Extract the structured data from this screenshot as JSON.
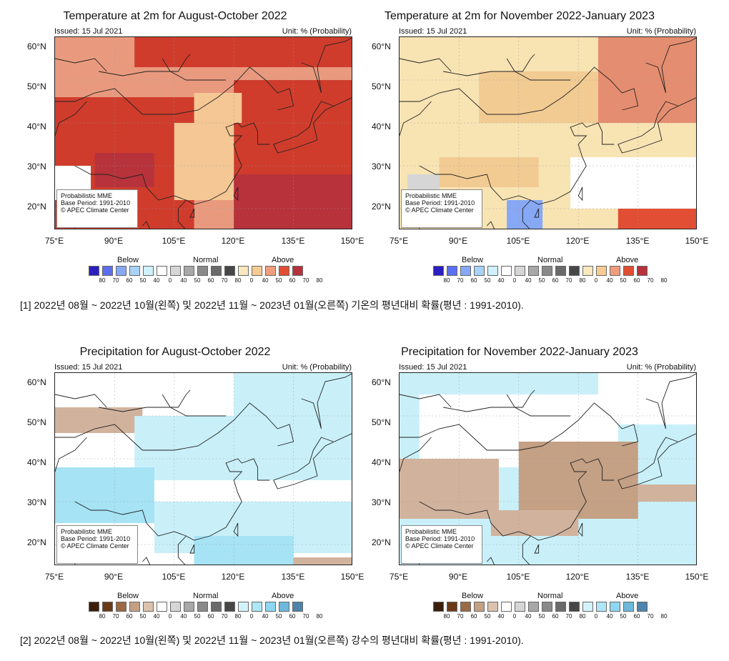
{
  "panels": [
    {
      "title": "Temperature at 2m for August-October 2022",
      "issued": "Issued: 15 Jul 2021",
      "unit": "Unit: % (Probability)",
      "info": [
        "Probabilistic MME",
        "Base Period: 1991-2010",
        "© APEC Climate Center"
      ],
      "fill_color": "#cf3c2c",
      "fill_color_2": "#e99a7e",
      "fill_color_3": "#f4c794",
      "dominant_category": "Above"
    },
    {
      "title": "Temperature at 2m for November 2022-January 2023",
      "issued": "Issued: 15 Jul 2021",
      "unit": "Unit: % (Probability)",
      "info": [
        "Probabilistic MME",
        "Base Period: 1991-2010",
        "© APEC Climate Center"
      ],
      "fill_color": "#f8e3b3",
      "fill_color_2": "#f2cb92",
      "fill_color_3": "#e58d70",
      "dominant_category": "Above"
    },
    {
      "title": "Precipitation for August-October 2022",
      "issued": "Issued: 15 Jul 2021",
      "unit": "Unit: % (Probability)",
      "info": [
        "Probabilistic MME",
        "Base Period: 1991-2010",
        "© APEC Climate Center"
      ],
      "fill_color": "#c9f0f9",
      "fill_color_2": "#a5e3f5",
      "fill_color_3": "#d1b39d",
      "dominant_category": "Normal"
    },
    {
      "title": "Precipitation for November 2022-January 2023",
      "issued": "Issued: 15 Jul 2021",
      "unit": "Unit: % (Probability)",
      "info": [
        "Probabilistic MME",
        "Base Period: 1991-2010",
        "© APEC Climate Center"
      ],
      "fill_color": "#c9f0f9",
      "fill_color_2": "#c4a084",
      "fill_color_3": "#d1b39d",
      "dominant_category": "Below"
    }
  ],
  "axes": {
    "lat_labels": [
      "60°N",
      "50°N",
      "40°N",
      "30°N",
      "20°N"
    ],
    "lon_labels": [
      "75°E",
      "90°E",
      "105°E",
      "120°E",
      "135°E",
      "150°E"
    ]
  },
  "legend": {
    "headings": [
      "Below",
      "Normal",
      "Above"
    ],
    "numbers": [
      "80",
      "70",
      "60",
      "50",
      "40",
      "0",
      "40",
      "50",
      "60",
      "70",
      "80",
      "0",
      "40",
      "50",
      "60",
      "70",
      "80"
    ],
    "temp_colors": {
      "below": [
        "#2b1fbf",
        "#5b6ff0",
        "#86a8f5",
        "#a8d2f7",
        "#cff2fc",
        "#ffffff"
      ],
      "normal": [
        "#ffffff",
        "#d6d6d6",
        "#a8a8a8",
        "#8a8a8a",
        "#6a6a6a",
        "#474747"
      ],
      "above": [
        "#ffffff",
        "#fae8be",
        "#f6cb94",
        "#ef9e7c",
        "#e24e34",
        "#b7323b"
      ]
    },
    "prcp_colors": {
      "below": [
        "#3b1e0c",
        "#6b3b19",
        "#9a6a44",
        "#c4a084",
        "#dcc2ad",
        "#ffffff"
      ],
      "normal": [
        "#ffffff",
        "#d6d6d6",
        "#a8a8a8",
        "#8a8a8a",
        "#6a6a6a",
        "#474747"
      ],
      "above": [
        "#ffffff",
        "#d2f3fb",
        "#aee7f7",
        "#8ed6f2",
        "#6eb8dc",
        "#4d85ad"
      ]
    }
  },
  "captions": [
    "[1] 2022년 08월 ~ 2022년 10월(왼쪽) 및 2022년 11월 ~ 2023년 01월(오른쪽) 기온의 평년대비 확률(평년 : 1991-2010).",
    "[2] 2022년 08월 ~ 2022년 10월(왼쪽) 및 2022년 11월 ~ 2023년 01월(오른쪽) 강수의 평년대비 확률(평년 : 1991-2010)."
  ]
}
